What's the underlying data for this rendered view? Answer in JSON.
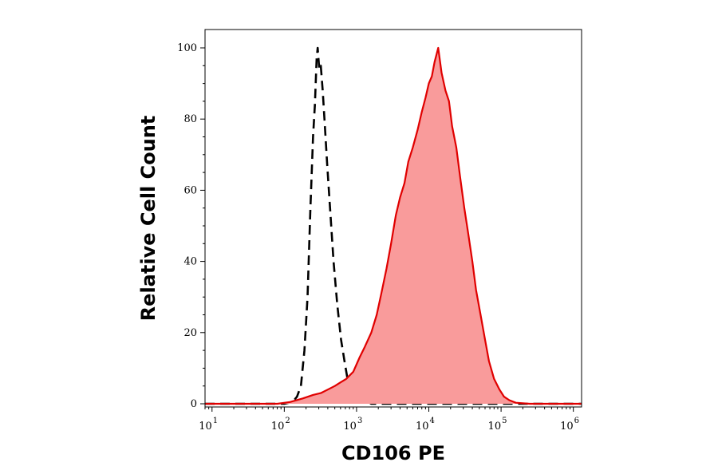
{
  "chart_data": {
    "type": "area",
    "xlabel": "CD106 PE",
    "ylabel": "Relative Cell Count",
    "x_scale": "log",
    "xlim": [
      8,
      1300000
    ],
    "ylim": [
      0,
      100
    ],
    "y_ticks": [
      0,
      20,
      40,
      60,
      80,
      100
    ],
    "x_ticks": [
      {
        "base": "10",
        "exp": "1",
        "value": 10
      },
      {
        "base": "10",
        "exp": "2",
        "value": 100
      },
      {
        "base": "10",
        "exp": "3",
        "value": 1000
      },
      {
        "base": "10",
        "exp": "4",
        "value": 10000
      },
      {
        "base": "10",
        "exp": "5",
        "value": 100000
      },
      {
        "base": "10",
        "exp": "6",
        "value": 1000000
      }
    ],
    "grid": false,
    "legend": "none",
    "series": [
      {
        "style": "dashed-line",
        "color": "#000000",
        "points": [
          [
            8,
            0
          ],
          [
            100,
            0
          ],
          [
            130,
            0.5
          ],
          [
            150,
            2
          ],
          [
            170,
            5
          ],
          [
            190,
            15
          ],
          [
            210,
            30
          ],
          [
            230,
            55
          ],
          [
            250,
            75
          ],
          [
            265,
            84
          ],
          [
            280,
            97
          ],
          [
            290,
            100
          ],
          [
            305,
            94
          ],
          [
            320,
            95
          ],
          [
            340,
            88
          ],
          [
            360,
            80
          ],
          [
            390,
            68
          ],
          [
            430,
            55
          ],
          [
            480,
            40
          ],
          [
            540,
            28
          ],
          [
            610,
            18
          ],
          [
            680,
            12
          ],
          [
            750,
            7
          ],
          [
            830,
            4
          ],
          [
            920,
            2.5
          ],
          [
            1050,
            1.5
          ],
          [
            1200,
            2
          ],
          [
            1350,
            1
          ],
          [
            1600,
            0
          ],
          [
            1300000,
            0
          ]
        ]
      },
      {
        "style": "filled-area",
        "color": "#e00000",
        "fill": "#f99b9b",
        "points": [
          [
            8,
            0
          ],
          [
            80,
            0
          ],
          [
            120,
            0.5
          ],
          [
            180,
            1.5
          ],
          [
            250,
            2.5
          ],
          [
            320,
            3
          ],
          [
            400,
            4
          ],
          [
            500,
            5
          ],
          [
            600,
            6
          ],
          [
            720,
            7
          ],
          [
            900,
            9
          ],
          [
            1100,
            13
          ],
          [
            1300,
            16
          ],
          [
            1600,
            20
          ],
          [
            1900,
            25
          ],
          [
            2200,
            31
          ],
          [
            2600,
            38
          ],
          [
            3000,
            45
          ],
          [
            3500,
            53
          ],
          [
            4000,
            58
          ],
          [
            4600,
            62
          ],
          [
            5200,
            68
          ],
          [
            6000,
            72
          ],
          [
            7000,
            77
          ],
          [
            8000,
            82
          ],
          [
            9000,
            86
          ],
          [
            10000,
            90
          ],
          [
            11000,
            92
          ],
          [
            12000,
            96
          ],
          [
            13500,
            100
          ],
          [
            15000,
            93
          ],
          [
            17000,
            88
          ],
          [
            19000,
            85
          ],
          [
            21000,
            78
          ],
          [
            24000,
            72
          ],
          [
            27000,
            64
          ],
          [
            31000,
            55
          ],
          [
            35000,
            48
          ],
          [
            40000,
            40
          ],
          [
            45000,
            32
          ],
          [
            52000,
            25
          ],
          [
            60000,
            18
          ],
          [
            68000,
            12
          ],
          [
            80000,
            7
          ],
          [
            95000,
            4
          ],
          [
            110000,
            2
          ],
          [
            130000,
            1
          ],
          [
            160000,
            0.3
          ],
          [
            250000,
            0
          ],
          [
            1300000,
            0
          ]
        ]
      }
    ]
  }
}
